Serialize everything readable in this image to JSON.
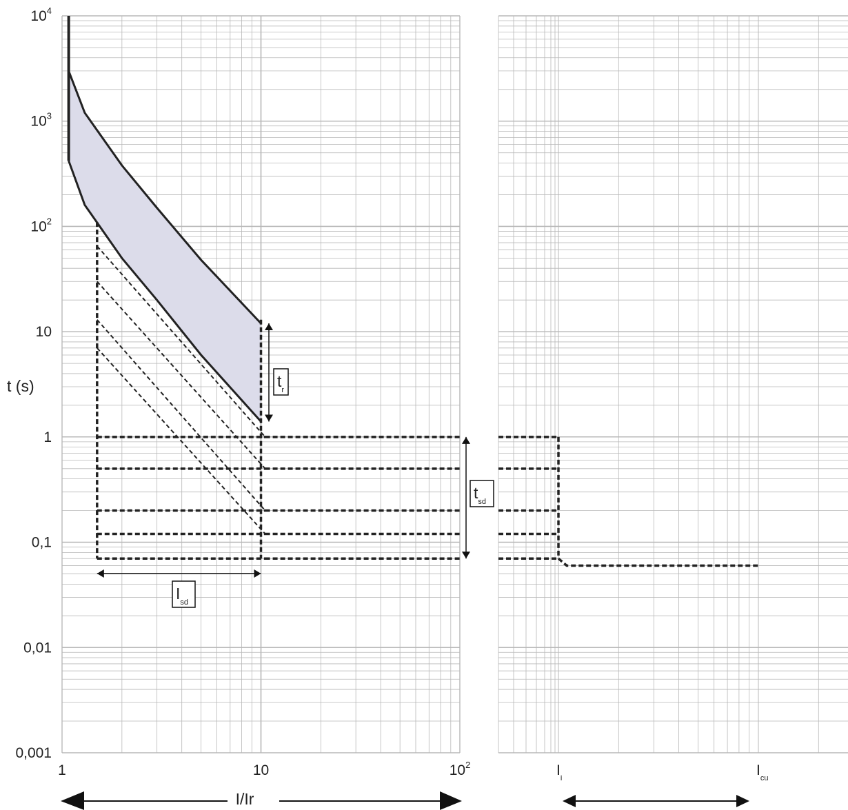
{
  "chart_data": {
    "type": "line",
    "title": "",
    "xlabel": "I/Ir",
    "ylabel": "t (s)",
    "x_scale": "log",
    "y_scale": "log",
    "xlim": [
      1,
      100
    ],
    "ylim": [
      0.001,
      10000
    ],
    "grid": true,
    "x_tick_labels": [
      {
        "value": 1,
        "base": "1",
        "sup": ""
      },
      {
        "value": 10,
        "base": "10",
        "sup": ""
      },
      {
        "value": 100,
        "base": "10",
        "sup": "2"
      }
    ],
    "y_tick_labels": [
      {
        "value": 10000,
        "base": "10",
        "sup": "4"
      },
      {
        "value": 1000,
        "base": "10",
        "sup": "3"
      },
      {
        "value": 100,
        "base": "10",
        "sup": "2"
      },
      {
        "value": 10,
        "base": "10",
        "sup": ""
      },
      {
        "value": 1,
        "base": "1",
        "sup": ""
      },
      {
        "value": 0.1,
        "base": "0,1",
        "sup": ""
      },
      {
        "value": 0.01,
        "base": "0,01",
        "sup": ""
      },
      {
        "value": 0.001,
        "base": "0,001",
        "sup": ""
      }
    ],
    "long_time_band": {
      "x_start": 1.08,
      "vertical_top": 10000,
      "upper_curve": [
        [
          1.08,
          3000
        ],
        [
          1.3,
          1200
        ],
        [
          2,
          380
        ],
        [
          3,
          150
        ],
        [
          5,
          48
        ],
        [
          10,
          12
        ]
      ],
      "lower_curve": [
        [
          1.08,
          420
        ],
        [
          1.3,
          160
        ],
        [
          2,
          50
        ],
        [
          3,
          20
        ],
        [
          5,
          6
        ],
        [
          10,
          1.4
        ]
      ],
      "fill_color": "#dcdcea"
    },
    "short_time_pickup": {
      "x": 1.5,
      "y_top": 110
    },
    "short_time_pickup_max": {
      "x": 10,
      "y_top": 13
    },
    "inverse_time_lines": [
      [
        [
          1.5,
          65
        ],
        [
          10.5,
          1.0
        ]
      ],
      [
        [
          1.5,
          30
        ],
        [
          10.5,
          0.5
        ]
      ],
      [
        [
          1.5,
          13
        ],
        [
          10.5,
          0.2
        ]
      ],
      [
        [
          1.5,
          7
        ],
        [
          10.5,
          0.12
        ]
      ]
    ],
    "definite_time_delays": [
      1.0,
      0.5,
      0.2,
      0.12,
      0.07
    ],
    "instantaneous_section": {
      "x_labels": [
        {
          "base": "I",
          "sub": "i"
        },
        {
          "base": "I",
          "sub": "cu"
        }
      ],
      "final_time": 0.06
    },
    "annotations": [
      {
        "base": "t",
        "sub": "r"
      },
      {
        "base": "t",
        "sub": "sd"
      },
      {
        "base": "I",
        "sub": "sd"
      }
    ]
  },
  "colors": {
    "grid": "#b8b8b8",
    "curve": "#222222",
    "band_fill": "#dcdcea"
  }
}
